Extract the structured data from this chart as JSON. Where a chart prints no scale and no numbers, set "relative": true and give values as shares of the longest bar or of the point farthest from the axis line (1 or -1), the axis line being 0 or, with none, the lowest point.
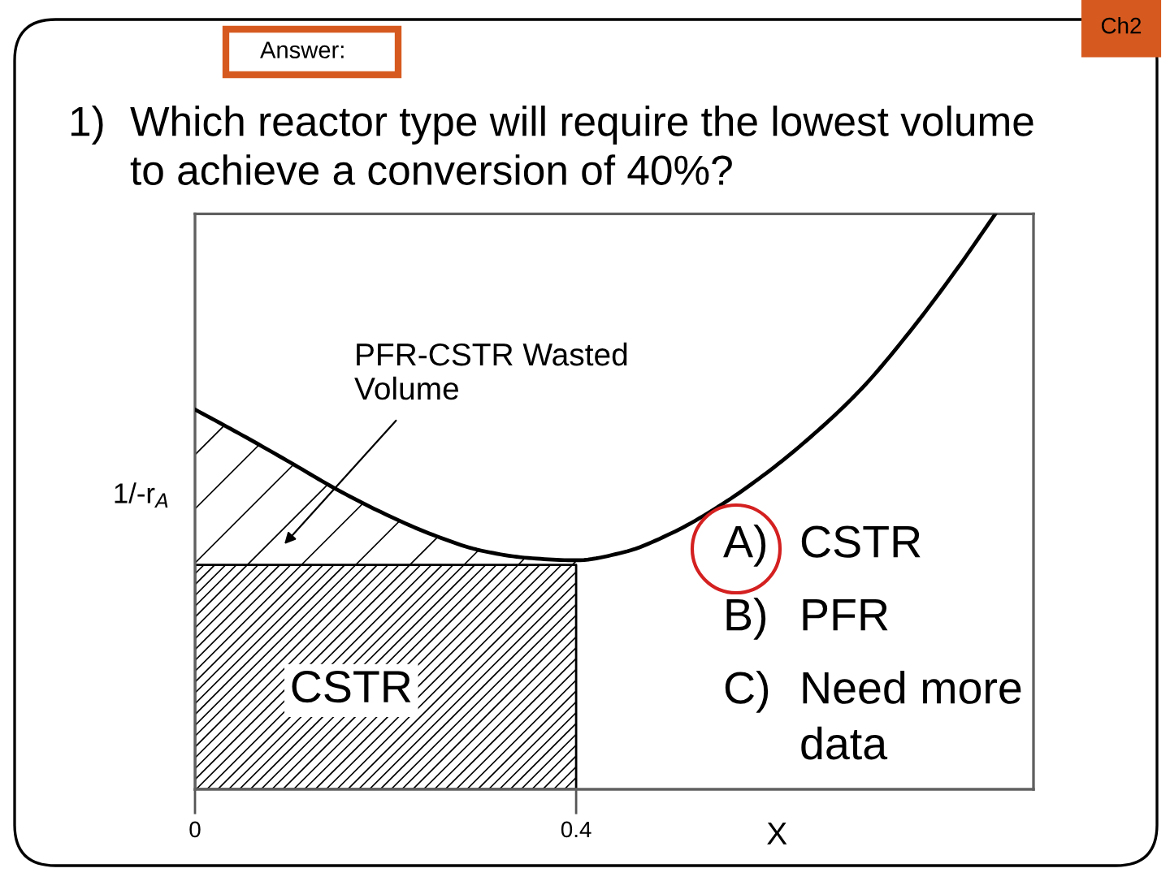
{
  "chart_data": {
    "type": "line",
    "title": "1) Which reactor type will require the lowest volume\nto achieve a conversion of 40%?",
    "xlabel": "X",
    "ylabel": "1/-r$_{A}$",
    "relative": true,
    "xlim": [
      0,
      0.88
    ],
    "xticks": [
      0,
      0.4
    ],
    "series": [
      {
        "type": "area",
        "name": "CSTR",
        "color": "#000000",
        "x": [
          0,
          0.4
        ],
        "values": [
          0.39,
          0.39
        ]
      },
      {
        "color": "#000000",
        "x": [
          0,
          0.05,
          0.1,
          0.15,
          0.2,
          0.25,
          0.3,
          0.35,
          0.4,
          0.45,
          0.5,
          0.55,
          0.6,
          0.65,
          0.7,
          0.75,
          0.8,
          0.84
        ],
        "values": [
          0.66,
          0.615,
          0.568,
          0.52,
          0.478,
          0.442,
          0.415,
          0.402,
          0.398,
          0.412,
          0.445,
          0.492,
          0.55,
          0.618,
          0.697,
          0.795,
          0.905,
          1.0
        ]
      }
    ],
    "annotations": [
      "Answer:",
      "Ch2",
      "PFR-CSTR Wasted\nVolume",
      "A) CSTR",
      "B) PFR",
      "C) Need more\ndata"
    ]
  }
}
